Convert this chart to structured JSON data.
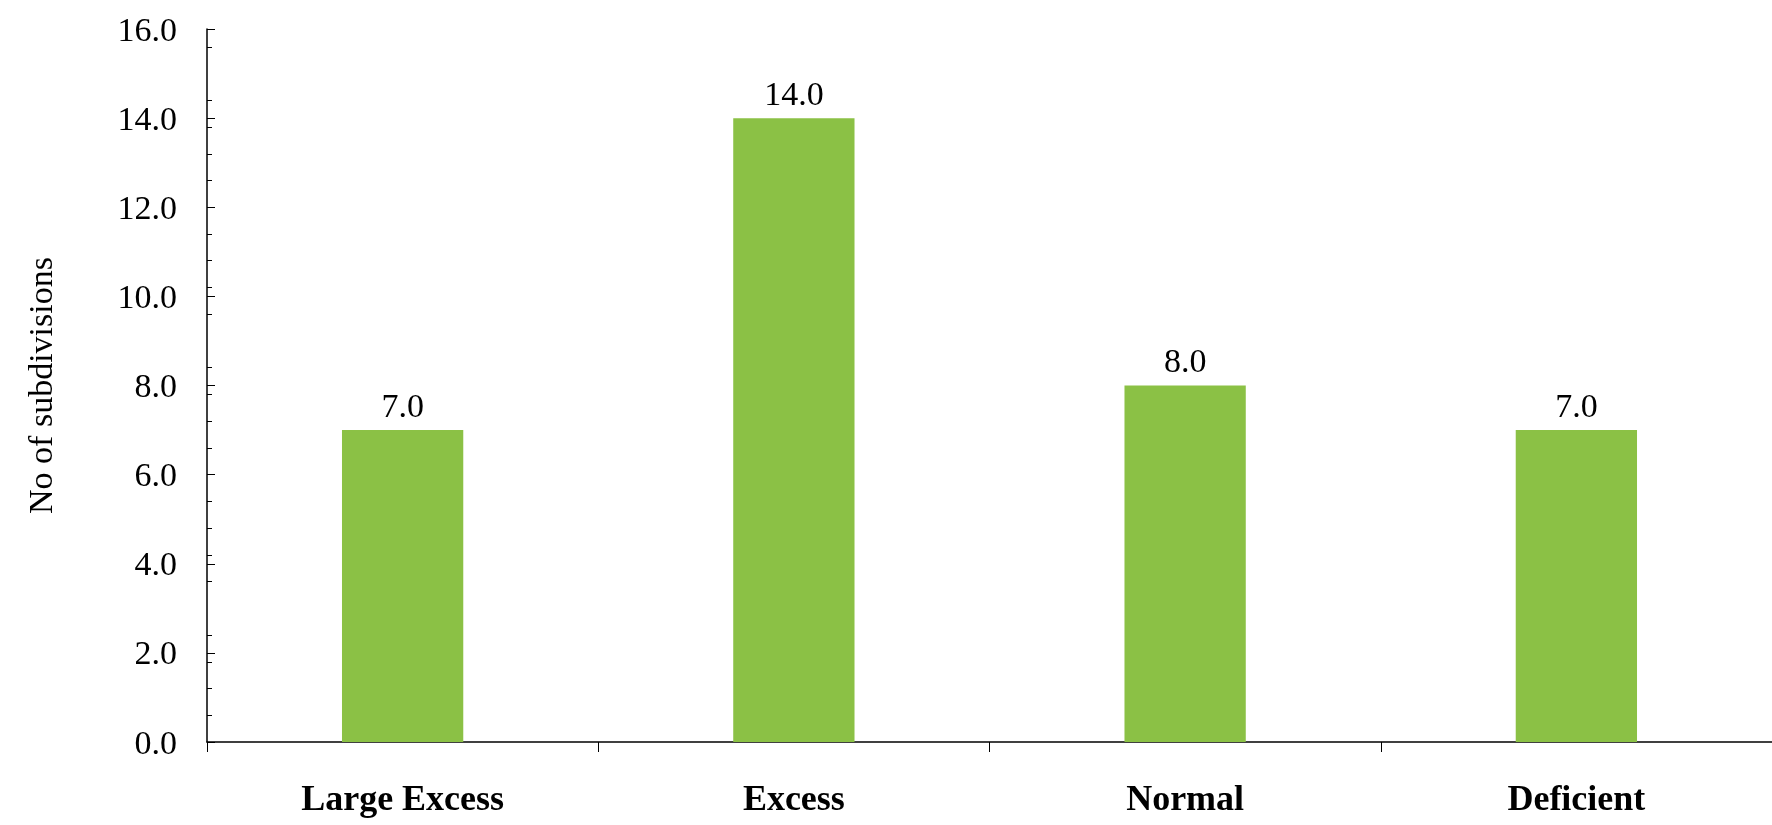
{
  "chart_data": {
    "type": "bar",
    "ylabel": "No of subdivisions",
    "categories": [
      "Large Excess",
      "Excess",
      "Normal",
      "Deficient"
    ],
    "values": [
      7,
      14,
      8,
      7
    ],
    "color": "#8bc145",
    "ylim": [
      0,
      16
    ],
    "yticks": [
      {
        "value": 0,
        "label": "0.0"
      },
      {
        "value": 2,
        "label": "2.0"
      },
      {
        "value": 4,
        "label": "4.0"
      },
      {
        "value": 6,
        "label": "6.0"
      },
      {
        "value": 8,
        "label": "8.0"
      },
      {
        "value": 10,
        "label": "10.0"
      },
      {
        "value": 12,
        "label": "12.0"
      },
      {
        "value": 14,
        "label": "14.0"
      },
      {
        "value": 16,
        "label": "16.0"
      }
    ],
    "value_labels": [
      "7.0",
      "14.0",
      "8.0",
      "7.0"
    ],
    "grid": false
  }
}
